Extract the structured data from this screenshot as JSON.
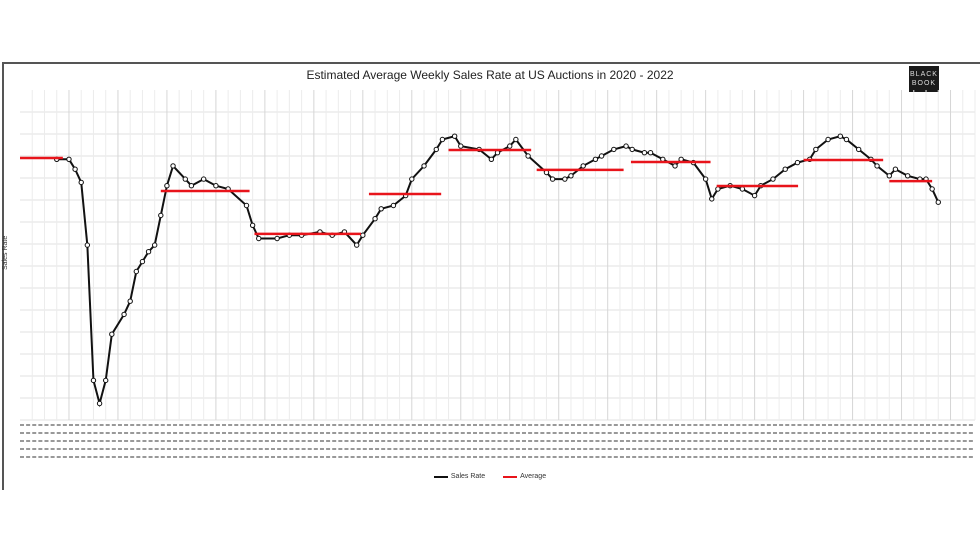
{
  "chart_data": {
    "type": "line",
    "title": "Estimated Average Weekly Sales Rate at US Auctions in 2020 - 2022",
    "ylabel": "Sales Rate",
    "xlabel": "",
    "xlim": [
      0,
      156
    ],
    "ylim": [
      0,
      100
    ],
    "grid": true,
    "legend_placement": "bottom",
    "colors": {
      "sales_rate": "#111111",
      "average": "#e8141b"
    },
    "series": [
      {
        "name": "Sales Rate",
        "points": [
          [
            6,
            79
          ],
          [
            8,
            79
          ],
          [
            9,
            76
          ],
          [
            10,
            72
          ],
          [
            11,
            53
          ],
          [
            12,
            12
          ],
          [
            13,
            5
          ],
          [
            14,
            12
          ],
          [
            15,
            26
          ],
          [
            17,
            32
          ],
          [
            18,
            36
          ],
          [
            19,
            45
          ],
          [
            20,
            48
          ],
          [
            21,
            51
          ],
          [
            22,
            53
          ],
          [
            23,
            62
          ],
          [
            24,
            71
          ],
          [
            25,
            77
          ],
          [
            27,
            73
          ],
          [
            28,
            71
          ],
          [
            30,
            73
          ],
          [
            32,
            71
          ],
          [
            34,
            70
          ],
          [
            37,
            65
          ],
          [
            38,
            59
          ],
          [
            39,
            55
          ],
          [
            42,
            55
          ],
          [
            44,
            56
          ],
          [
            46,
            56
          ],
          [
            49,
            57
          ],
          [
            51,
            56
          ],
          [
            53,
            57
          ],
          [
            55,
            53
          ],
          [
            56,
            56
          ],
          [
            58,
            61
          ],
          [
            59,
            64
          ],
          [
            61,
            65
          ],
          [
            63,
            68
          ],
          [
            64,
            73
          ],
          [
            66,
            77
          ],
          [
            68,
            82
          ],
          [
            69,
            85
          ],
          [
            71,
            86
          ],
          [
            72,
            83
          ],
          [
            75,
            82
          ],
          [
            77,
            79
          ],
          [
            78,
            81
          ],
          [
            80,
            83
          ],
          [
            81,
            85
          ],
          [
            83,
            80
          ],
          [
            86,
            75
          ],
          [
            87,
            73
          ],
          [
            89,
            73
          ],
          [
            90,
            74
          ],
          [
            92,
            77
          ],
          [
            94,
            79
          ],
          [
            95,
            80
          ],
          [
            97,
            82
          ],
          [
            99,
            83
          ],
          [
            100,
            82
          ],
          [
            102,
            81
          ],
          [
            103,
            81
          ],
          [
            105,
            79
          ],
          [
            107,
            77
          ],
          [
            108,
            79
          ],
          [
            110,
            78
          ],
          [
            112,
            73
          ],
          [
            113,
            67
          ],
          [
            114,
            70
          ],
          [
            116,
            71
          ],
          [
            118,
            70
          ],
          [
            120,
            68
          ],
          [
            121,
            71
          ],
          [
            123,
            73
          ],
          [
            125,
            76
          ],
          [
            127,
            78
          ],
          [
            129,
            79
          ],
          [
            130,
            82
          ],
          [
            132,
            85
          ],
          [
            134,
            86
          ],
          [
            135,
            85
          ],
          [
            137,
            82
          ],
          [
            139,
            79
          ],
          [
            140,
            77
          ],
          [
            142,
            74
          ],
          [
            143,
            76
          ],
          [
            145,
            74
          ],
          [
            147,
            73
          ],
          [
            148,
            73
          ],
          [
            149,
            70
          ],
          [
            150,
            66
          ]
        ]
      },
      {
        "name": "Average",
        "segments": [
          [
            0,
            7,
            79.4
          ],
          [
            23,
            37.5,
            69.4
          ],
          [
            38.3,
            55.7,
            56.4
          ],
          [
            57,
            68.8,
            68.5
          ],
          [
            70,
            83.5,
            81.8
          ],
          [
            84.4,
            98.6,
            75.8
          ],
          [
            99.8,
            112.8,
            78.2
          ],
          [
            113.8,
            127.1,
            70.9
          ],
          [
            128,
            141,
            78.8
          ],
          [
            142,
            149,
            72.4
          ]
        ]
      }
    ]
  },
  "logo": {
    "text_line1": "BLACK",
    "text_line2": "BOOK"
  },
  "legend": {
    "sales_rate": "Sales Rate",
    "average": "Average"
  }
}
